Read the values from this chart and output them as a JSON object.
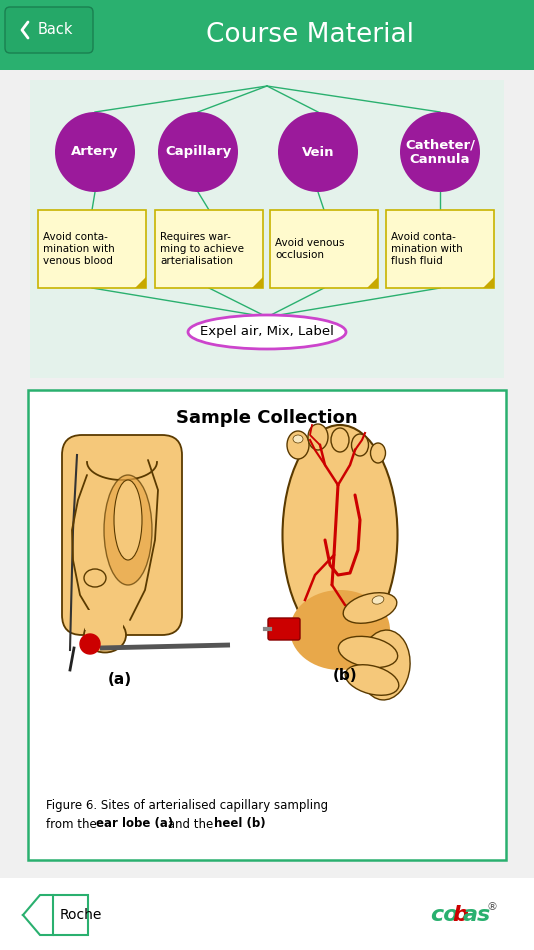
{
  "header_bg": "#2ab06f",
  "header_text": "Course Material",
  "back_text": "Back",
  "top_panel_bg": "#e4f2eb",
  "circle_color": "#9b1a9b",
  "circle_text_color": "#ffffff",
  "box_bg": "#fffacd",
  "box_border": "#c8b400",
  "line_color": "#2ab06f",
  "ellipse_border": "#cc44cc",
  "ellipse_bg": "#ffffff",
  "ellipse_text": "Expel air, Mix, Label",
  "bottom_panel_border": "#2ab06f",
  "bottom_panel_bg": "#ffffff",
  "sample_title": "Sample Collection",
  "circles": [
    "Artery",
    "Capillary",
    "Vein",
    "Catheter/\nCannula"
  ],
  "boxes": [
    "Avoid conta-\nmination with\nvenous blood",
    "Requires war-\nming to achieve\narterialisation",
    "Avoid venous\nocclusion",
    "Avoid conta-\nmination with\nflush fluid"
  ],
  "skin_color": "#f5c87a",
  "skin_dark": "#e8a84a",
  "skin_outline": "#5a3a00",
  "blood_red": "#cc0000",
  "roche_text": "Roche",
  "footer_border": "#2ab06f"
}
